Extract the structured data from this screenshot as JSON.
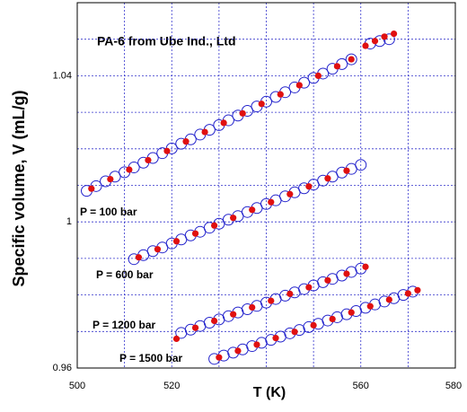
{
  "chart_data": {
    "type": "scatter",
    "title": "PA-6 from Ube Ind., Ltd",
    "x_label": "T (K)",
    "y_label": "Specific volume, V (mL/g)",
    "annotations": [
      "P = 100 bar",
      "P = 600 bar",
      "P = 1200 bar",
      "P = 1500 bar"
    ],
    "xlim": [
      500,
      580
    ],
    "ylim": [
      0.96,
      1.06
    ],
    "xticks": [
      500,
      520,
      560,
      580
    ],
    "yticks": [
      0.96,
      1,
      1.04
    ],
    "minor_xticks": [
      510,
      530,
      540,
      550,
      570
    ],
    "minor_yticks": [
      0.97,
      0.98,
      0.99,
      1.01,
      1.02,
      1.03,
      1.05
    ],
    "grid": true,
    "series": [
      {
        "color": "#2222cc",
        "marker": "open",
        "x": [
          502,
          504,
          506,
          508,
          510,
          512,
          514,
          516,
          518,
          520,
          522,
          524,
          526,
          528,
          530,
          532,
          534,
          536,
          538,
          540,
          542,
          544,
          546,
          548,
          550,
          552,
          554,
          556,
          558,
          562,
          564,
          566
        ],
        "values": [
          1.0085,
          1.0098,
          1.0111,
          1.0124,
          1.0136,
          1.0149,
          1.0162,
          1.0175,
          1.0188,
          1.0201,
          1.0214,
          1.0226,
          1.0239,
          1.0252,
          1.0265,
          1.0278,
          1.0291,
          1.0304,
          1.0316,
          1.0329,
          1.0342,
          1.0355,
          1.0368,
          1.0381,
          1.0394,
          1.0406,
          1.0419,
          1.0432,
          1.0445,
          1.0488,
          1.0495,
          1.05
        ]
      },
      {
        "color": "#e01010",
        "marker": "filled",
        "x": [
          503,
          507,
          511,
          515,
          519,
          523,
          527,
          531,
          535,
          539,
          543,
          547,
          551,
          555,
          558,
          561,
          563,
          565,
          567
        ],
        "values": [
          1.0091,
          1.0117,
          1.0143,
          1.0169,
          1.0194,
          1.022,
          1.0246,
          1.0271,
          1.0297,
          1.0323,
          1.0349,
          1.0374,
          1.04,
          1.0426,
          1.0445,
          1.0482,
          1.0495,
          1.0507,
          1.0515
        ]
      },
      {
        "color": "#2222cc",
        "marker": "open",
        "x": [
          512,
          514,
          516,
          518,
          520,
          522,
          524,
          526,
          528,
          530,
          532,
          534,
          536,
          538,
          540,
          542,
          544,
          546,
          548,
          550,
          552,
          554,
          556,
          558,
          560
        ],
        "values": [
          0.9898,
          0.9909,
          0.992,
          0.993,
          0.9941,
          0.9952,
          0.9963,
          0.9973,
          0.9984,
          0.9995,
          1.0006,
          1.0016,
          1.0027,
          1.0038,
          1.0049,
          1.0059,
          1.007,
          1.0081,
          1.0092,
          1.0102,
          1.0113,
          1.0124,
          1.0135,
          1.0145,
          1.0156
        ]
      },
      {
        "color": "#e01010",
        "marker": "filled",
        "x": [
          513,
          517,
          521,
          525,
          529,
          533,
          537,
          541,
          545,
          549,
          553,
          557
        ],
        "values": [
          0.9903,
          0.9925,
          0.9947,
          0.9968,
          0.999,
          1.0011,
          1.0033,
          1.0054,
          1.0076,
          1.0097,
          1.0119,
          1.014
        ]
      },
      {
        "color": "#2222cc",
        "marker": "open",
        "x": [
          522,
          524,
          526,
          528,
          530,
          532,
          534,
          536,
          538,
          540,
          542,
          544,
          546,
          548,
          550,
          552,
          554,
          556,
          558,
          560
        ],
        "values": [
          0.9696,
          0.9705,
          0.9715,
          0.9724,
          0.9733,
          0.9742,
          0.9752,
          0.9761,
          0.977,
          0.9779,
          0.9789,
          0.9798,
          0.9807,
          0.9816,
          0.9826,
          0.9835,
          0.9844,
          0.9853,
          0.9863,
          0.9872
        ]
      },
      {
        "color": "#e01010",
        "marker": "filled",
        "x": [
          521,
          525,
          529,
          533,
          537,
          541,
          545,
          549,
          553,
          557,
          561
        ],
        "values": [
          0.968,
          0.971,
          0.9729,
          0.9747,
          0.9766,
          0.9784,
          0.9803,
          0.9821,
          0.984,
          0.9858,
          0.9877
        ]
      },
      {
        "color": "#2222cc",
        "marker": "open",
        "x": [
          529,
          531,
          533,
          535,
          537,
          539,
          541,
          543,
          545,
          547,
          549,
          551,
          553,
          555,
          557,
          559,
          561,
          563,
          565,
          567,
          569,
          571
        ],
        "values": [
          0.9625,
          0.9634,
          0.9642,
          0.9651,
          0.966,
          0.9669,
          0.9677,
          0.9686,
          0.9695,
          0.9704,
          0.9712,
          0.9721,
          0.973,
          0.9739,
          0.9747,
          0.9756,
          0.9765,
          0.9774,
          0.9782,
          0.9791,
          0.98,
          0.9809
        ]
      },
      {
        "color": "#e01010",
        "marker": "filled",
        "x": [
          530,
          534,
          538,
          542,
          546,
          550,
          554,
          558,
          562,
          566,
          570,
          572
        ],
        "values": [
          0.9629,
          0.9647,
          0.9664,
          0.9682,
          0.9699,
          0.9717,
          0.9734,
          0.9752,
          0.9769,
          0.9787,
          0.9804,
          0.9813
        ]
      }
    ]
  }
}
